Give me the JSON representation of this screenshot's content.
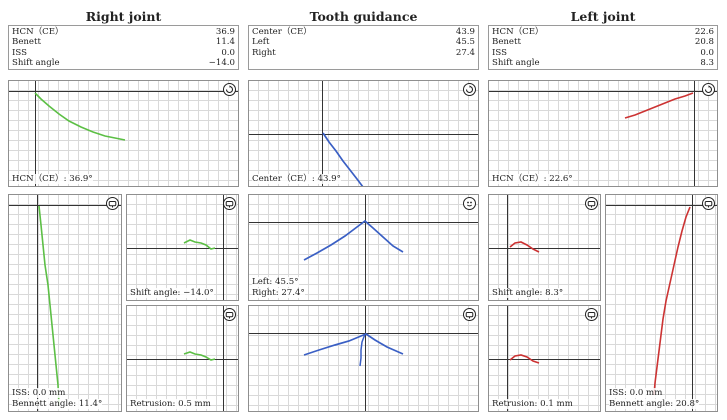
{
  "columns": {
    "right_joint": {
      "title": "Right joint",
      "rows": [
        {
          "label": "HCN（CE）",
          "value": "36.9"
        },
        {
          "label": "Benett",
          "value": "11.4"
        },
        {
          "label": "ISS",
          "value": "0.0"
        },
        {
          "label": "Shift angle",
          "value": "−14.0"
        }
      ],
      "main_caption": "HCN（CE）: 36.9°",
      "vertical_caption_1": "ISS: 0.0 mm",
      "vertical_caption_2": "Bennett angle: 11.4°",
      "shift_caption": "Shift angle: −14.0°",
      "retrusion_caption": "Retrusion: 0.5 mm"
    },
    "tooth_guidance": {
      "title": "Tooth guidance",
      "rows": [
        {
          "label": "Center（CE）",
          "value": "43.9"
        },
        {
          "label": "Left",
          "value": "45.5"
        },
        {
          "label": "Right",
          "value": "27.4"
        }
      ],
      "main_caption": "Center（CE）: 43.9°",
      "lateral_caption_1": "Left: 45.5°",
      "lateral_caption_2": "Right: 27.4°"
    },
    "left_joint": {
      "title": "Left joint",
      "rows": [
        {
          "label": "HCN（CE）",
          "value": "22.6"
        },
        {
          "label": "Benett",
          "value": "20.8"
        },
        {
          "label": "ISS",
          "value": "0.0"
        },
        {
          "label": "Shift angle",
          "value": "8.3"
        }
      ],
      "main_caption": "HCN（CE）: 22.6°",
      "shift_caption": "Shift angle: 8.3°",
      "retrusion_caption": "Retrusion: 0.1 mm",
      "vertical_caption_1": "ISS: 0.0 mm",
      "vertical_caption_2": "Bennett angle: 20.8°"
    }
  },
  "colors": {
    "right": "#5cbf45",
    "tooth": "#3a5fc4",
    "left": "#cc3333"
  },
  "icons": {
    "rotate": "rotate-icon",
    "view": "view-icon",
    "face": "face-icon"
  }
}
